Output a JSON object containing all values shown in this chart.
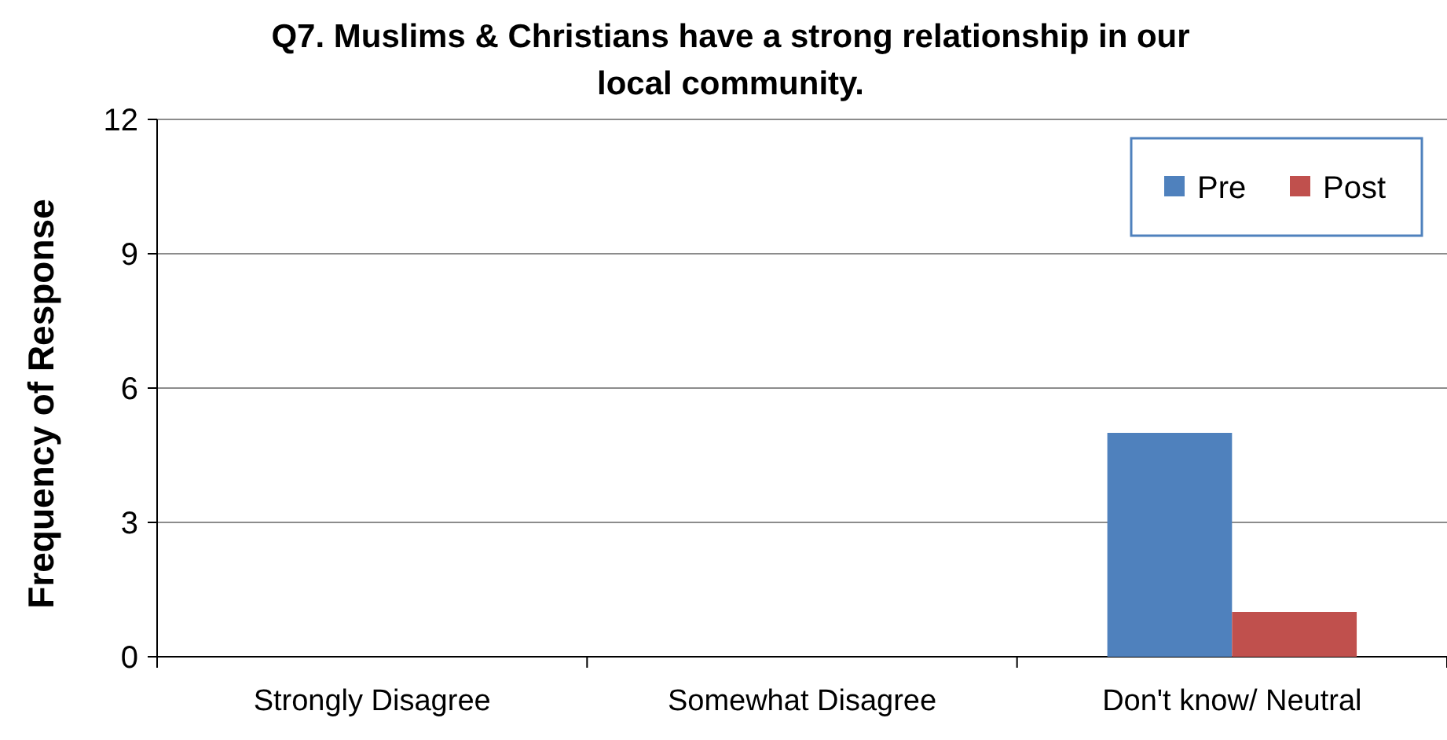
{
  "chart_data": {
    "type": "bar",
    "title": "Q7. Muslims & Christians have a strong relationship in our local community.",
    "ylabel": "Frequency of Response",
    "categories": [
      "Strongly Disagree",
      "Somewhat Disagree",
      "Don't know/ Neutral"
    ],
    "series": [
      {
        "name": "Pre",
        "color": "#4f81bd",
        "values": [
          0,
          0,
          5
        ]
      },
      {
        "name": "Post",
        "color": "#c0504d",
        "values": [
          0,
          0,
          1
        ]
      }
    ],
    "ylim": [
      0,
      12
    ],
    "yticks": [
      0,
      3,
      6,
      9,
      12
    ],
    "grid": "y",
    "legend": "top right"
  }
}
